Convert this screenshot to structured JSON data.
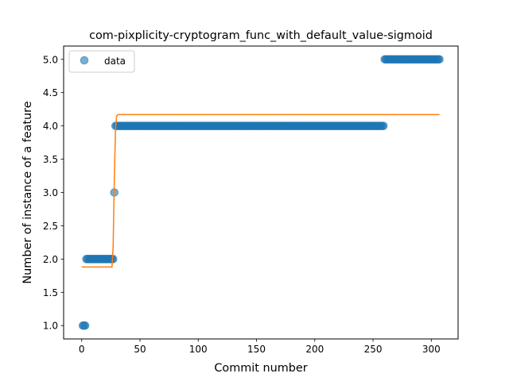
{
  "chart_data": {
    "type": "scatter",
    "title": "com-pixplicity-cryptogram_func_with_default_value-sigmoid",
    "xlabel": "Commit number",
    "ylabel": "Number of instance of a feature",
    "xlim": [
      -15.5,
      323
    ],
    "ylim": [
      0.8,
      5.2
    ],
    "xticks": [
      0,
      50,
      100,
      150,
      200,
      250,
      300
    ],
    "yticks": [
      1.0,
      1.5,
      2.0,
      2.5,
      3.0,
      3.5,
      4.0,
      4.5,
      5.0
    ],
    "xtick_labels": [
      "0",
      "50",
      "100",
      "150",
      "200",
      "250",
      "300"
    ],
    "ytick_labels": [
      "1.0",
      "1.5",
      "2.0",
      "2.5",
      "3.0",
      "3.5",
      "4.0",
      "4.5",
      "5.0"
    ],
    "grid": false,
    "legend": {
      "position": "top-left",
      "entries": [
        "data"
      ]
    },
    "series": [
      {
        "name": "data",
        "kind": "points",
        "color": "#1f77b4",
        "segments": [
          {
            "x_start": 1,
            "x_end": 3,
            "y": 1.0
          },
          {
            "x_start": 4,
            "x_end": 27,
            "y": 2.0
          },
          {
            "x_start": 28,
            "x_end": 28,
            "y": 3.0
          },
          {
            "x_start": 29,
            "x_end": 259,
            "y": 4.0
          },
          {
            "x_start": 260,
            "x_end": 307,
            "y": 5.0
          }
        ]
      },
      {
        "kind": "fitted-sigmoid",
        "color": "#ff7f0e",
        "points": [
          [
            0,
            1.88
          ],
          [
            26,
            1.88
          ],
          [
            27,
            2.2
          ],
          [
            28,
            3.2
          ],
          [
            29,
            3.95
          ],
          [
            30,
            4.15
          ],
          [
            31,
            4.17
          ],
          [
            307,
            4.17
          ]
        ]
      }
    ]
  }
}
